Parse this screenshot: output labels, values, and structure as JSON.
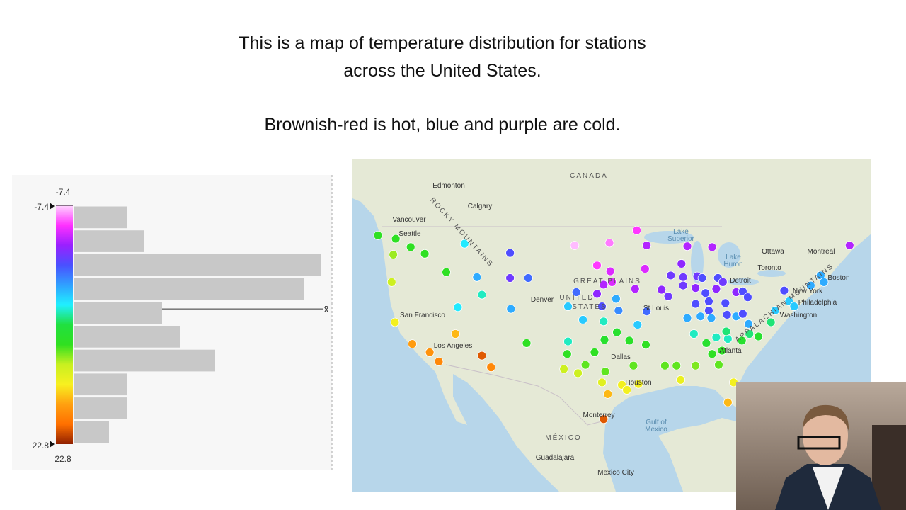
{
  "slide": {
    "lines": [
      "This is a map of temperature distribution for stations",
      "across the United States.",
      "Brownish-red is hot, blue and purple are cold."
    ]
  },
  "chart_data": [
    {
      "type": "histogram",
      "bins": [
        -7.4,
        -4.38,
        -1.36,
        1.66,
        4.68,
        7.7,
        10.72,
        13.74,
        16.76,
        19.78,
        22.8
      ],
      "counts": [
        3,
        4,
        14,
        13,
        5,
        6,
        8,
        3,
        3,
        2
      ],
      "color": "#c8c8c8",
      "mean": 5.7,
      "mean_label": "x̄",
      "colormap": [
        "#ffd6ff",
        "#ff30ff",
        "#9a20ff",
        "#4a50ff",
        "#30a0ff",
        "#20f0ff",
        "#20e040",
        "#30e020",
        "#c8f020",
        "#f8f020",
        "#ffa010",
        "#ff7000",
        "#902000"
      ]
    },
    {
      "type": "scatter-map",
      "lon": [
        -124.95,
        -122.8,
        -121.0,
        -119.3,
        -123.1,
        -114.5,
        -109.0,
        -116.7,
        -123.3,
        -113.0,
        -109.0,
        -106.8,
        -112.4,
        -115.3,
        -108.9,
        -122.9,
        -115.6,
        -120.8,
        -118.7,
        -117.6,
        -112.4,
        -111.3,
        -107.0,
        -102.0,
        -102.1,
        -102.5,
        -100.8,
        -99.9,
        -98.8,
        -97.6,
        -97.7,
        -100.2,
        -102.0,
        -101.0,
        -98.5,
        -97.9,
        -95.9,
        -97.7,
        -96.7,
        -98.5,
        -96.9,
        -97.0,
        -101.2,
        -93.7,
        -92.5,
        -92.7,
        -93.9,
        -96.2,
        -96.1,
        -94.6,
        -92.6,
        -94.1,
        -97.5,
        -97.9,
        -97.2,
        -97.7,
        -95.5,
        -94.9,
        -93.5,
        -90.3,
        -88.9,
        -88.4,
        -86.6,
        -93.6,
        -92.5,
        -90.7,
        -89.9,
        -89.6,
        -88.3,
        -87.6,
        -84.6,
        -88.1,
        -88.1,
        -86.4,
        -85.8,
        -86.6,
        -85.4,
        -83.9,
        -84.1,
        -83.3,
        -86.6,
        -85.0,
        -83.0,
        -85.0,
        -87.6,
        -86.0,
        -84.7,
        -82.8,
        -81.7,
        -81.7,
        -80.9,
        -80.3,
        -80.9,
        -80.2,
        -86.8,
        -85.3,
        -84.1,
        -82.7,
        -84.6,
        -83.4,
        -81.0,
        -80.1,
        -79.0,
        -77.5,
        -77.0,
        -75.3,
        -75.9,
        -72.7,
        -71.5,
        -71.1,
        -68.0,
        -83.8,
        -82.7,
        -82.0,
        -74.7,
        -82.9
      ],
      "lat": [
        47.4,
        47.0,
        46.0,
        45.2,
        45.1,
        46.4,
        45.3,
        43.0,
        41.8,
        42.4,
        42.3,
        42.3,
        40.3,
        38.8,
        38.6,
        37.0,
        35.6,
        34.4,
        33.4,
        32.3,
        33.0,
        31.6,
        34.5,
        34.7,
        33.2,
        31.4,
        30.9,
        31.9,
        33.4,
        34.9,
        37.1,
        37.3,
        38.9,
        40.6,
        40.4,
        38.9,
        38.4,
        41.5,
        41.8,
        43.8,
        43.1,
        46.5,
        46.2,
        48.0,
        46.2,
        43.4,
        41.0,
        39.8,
        35.8,
        34.8,
        34.3,
        31.8,
        31.1,
        29.8,
        28.4,
        25.4,
        29.5,
        28.9,
        29.6,
        31.8,
        31.8,
        30.1,
        31.8,
        36.7,
        38.3,
        40.9,
        40.1,
        42.6,
        44.0,
        46.1,
        46.0,
        42.4,
        41.4,
        42.5,
        42.3,
        41.1,
        40.5,
        42.3,
        41.0,
        41.8,
        39.2,
        39.5,
        39.3,
        38.4,
        37.5,
        37.7,
        37.5,
        37.9,
        37.7,
        40.6,
        40.7,
        40.0,
        38.0,
        36.8,
        35.6,
        34.5,
        35.2,
        35.0,
        33.2,
        33.6,
        34.8,
        35.6,
        35.3,
        37.0,
        38.4,
        39.5,
        40.8,
        41.4,
        42.6,
        41.8,
        46.2,
        31.9,
        27.4,
        29.8,
        38.9,
        35.9
      ],
      "values": [
        10,
        10,
        10,
        10,
        12,
        5,
        0,
        10,
        13,
        3,
        -1,
        1,
        6,
        5,
        3,
        15,
        17,
        18,
        18.5,
        19,
        21,
        19,
        10,
        6,
        10,
        13,
        13,
        11,
        10,
        9,
        6,
        4,
        4,
        1,
        -2,
        0,
        2,
        -3,
        -4,
        -5,
        -4,
        -6,
        -7,
        -5,
        -3,
        -4,
        -3,
        3,
        9,
        9.5,
        10,
        11,
        11,
        14,
        17,
        21,
        15,
        15,
        15,
        11,
        11,
        14.5,
        11.5,
        4,
        1,
        -2,
        -1,
        -1,
        -2,
        -3,
        -3,
        -1,
        -1,
        -1,
        0,
        -2,
        0,
        0,
        -2,
        -1,
        0,
        0,
        0,
        0,
        3,
        3,
        3,
        0,
        3,
        -2,
        0,
        0,
        0,
        3,
        6,
        9,
        6,
        6,
        10,
        10,
        9,
        7,
        9,
        7,
        4,
        4,
        0,
        3,
        3,
        3,
        -3,
        11,
        17,
        15,
        4,
        7
      ],
      "labels": [
        "CANADA",
        "Edmonton",
        "Calgary",
        "Vancouver",
        "Seattle",
        "San Francisco",
        "Los Angeles",
        "Denver",
        "UNITED",
        "STATES",
        "GREAT PLAINS",
        "Dallas",
        "Houston",
        "Monterrey",
        "MÉXICO",
        "Guadalajara",
        "Mexico City",
        "Gulf of",
        "Mexico",
        "Atlanta",
        "Washington",
        "Philadelphia",
        "New York",
        "Boston",
        "Montreal",
        "Ottawa",
        "Toronto",
        "Detroit",
        "St Louis",
        "ROCKY MOUNTAINS",
        "APPALACHIAN MOUNTAINS",
        "Lake",
        "Superior",
        "Lake",
        "Huron"
      ]
    }
  ]
}
